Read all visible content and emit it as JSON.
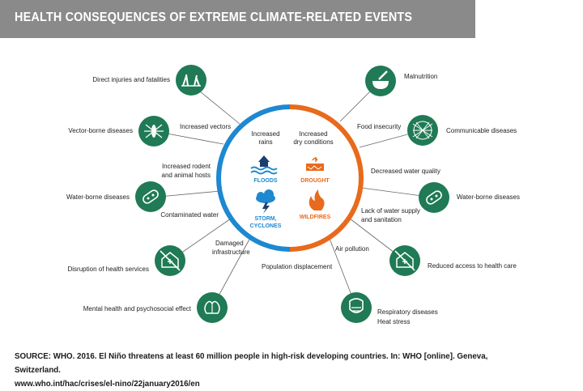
{
  "title": "HEALTH CONSEQUENCES OF EXTREME CLIMATE-RELATED EVENTS",
  "colors": {
    "banner": "#8a8a8a",
    "green": "#1f7a55",
    "blue": "#1e88d0",
    "orange": "#e86a1c",
    "navy": "#1a3f6e"
  },
  "center": {
    "increased_rains": [
      "Increased",
      "rains"
    ],
    "increased_dry": [
      "Increased",
      "dry conditions"
    ],
    "hazards": [
      {
        "label": "FLOODS",
        "icon": "flood-icon"
      },
      {
        "label": "DROUGHT",
        "icon": "drought-icon"
      },
      {
        "label": "STORM,",
        "label2": "CYCLONES",
        "icon": "storm-icon"
      },
      {
        "label": "WILDFIRES",
        "icon": "fire-icon"
      }
    ]
  },
  "outcomes": [
    {
      "name": "Direct injuries and fatalities",
      "icon": "injury-icon"
    },
    {
      "name": "Vector-borne diseases",
      "icon": "mosquito-icon"
    },
    {
      "name": "Water-borne diseases",
      "icon": "bacteria-icon"
    },
    {
      "name": "Disruption of health services",
      "icon": "no-clinic-icon"
    },
    {
      "name": "Mental health and psychosocial effect",
      "icon": "brain-icon"
    },
    {
      "name": "Malnutrition",
      "icon": "mortar-icon"
    },
    {
      "name": "Communicable diseases",
      "icon": "virus-icon"
    },
    {
      "name": "Water-borne diseases",
      "icon": "bacteria-icon"
    },
    {
      "name": "Reduced access to health care",
      "icon": "no-clinic-icon"
    },
    {
      "name": "Respiratory diseases",
      "name2": "Heat stress",
      "icon": "mask-icon"
    }
  ],
  "pathways": [
    {
      "text": "Increased vectors"
    },
    {
      "text": "Increased rodent",
      "text2": "and animal hosts"
    },
    {
      "text": "Contaminated water"
    },
    {
      "text": "Damaged",
      "text2": "infrastructure"
    },
    {
      "text": "Population displacement"
    },
    {
      "text": "Food insecurity"
    },
    {
      "text": "Decreased water quality"
    },
    {
      "text": "Lack of water supply",
      "text2": "and sanitation"
    },
    {
      "text": "Air pollution"
    }
  ],
  "source": {
    "line1": "SOURCE: WHO. 2016. El Niño threatens at least 60 million people in high-risk developing countries. In: WHO [online]. Geneva, Switzerland.",
    "line2": "www.who.int/hac/crises/el-nino/22january2016/en"
  }
}
